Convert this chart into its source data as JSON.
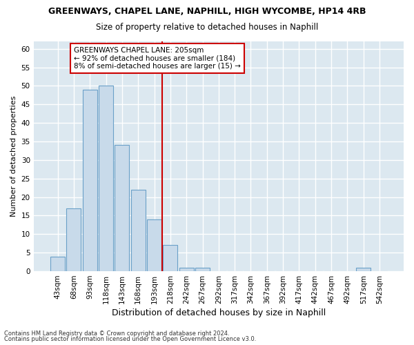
{
  "title": "GREENWAYS, CHAPEL LANE, NAPHILL, HIGH WYCOMBE, HP14 4RB",
  "subtitle": "Size of property relative to detached houses in Naphill",
  "xlabel": "Distribution of detached houses by size in Naphill",
  "ylabel": "Number of detached properties",
  "categories": [
    "43sqm",
    "68sqm",
    "93sqm",
    "118sqm",
    "143sqm",
    "168sqm",
    "193sqm",
    "218sqm",
    "242sqm",
    "267sqm",
    "292sqm",
    "317sqm",
    "342sqm",
    "367sqm",
    "392sqm",
    "417sqm",
    "442sqm",
    "467sqm",
    "492sqm",
    "517sqm",
    "542sqm"
  ],
  "values": [
    4,
    17,
    49,
    50,
    34,
    22,
    14,
    7,
    1,
    1,
    0,
    0,
    0,
    0,
    0,
    0,
    0,
    0,
    0,
    1,
    0
  ],
  "bar_color": "#c8daea",
  "bar_edgecolor": "#6aa0c8",
  "bar_linewidth": 0.8,
  "vline_position": 6.5,
  "vline_color": "#cc0000",
  "vline_linewidth": 1.5,
  "ylim": [
    0,
    62
  ],
  "yticks": [
    0,
    5,
    10,
    15,
    20,
    25,
    30,
    35,
    40,
    45,
    50,
    55,
    60
  ],
  "annotation_line1": "GREENWAYS CHAPEL LANE: 205sqm",
  "annotation_line2": "← 92% of detached houses are smaller (184)",
  "annotation_line3": "8% of semi-detached houses are larger (15) →",
  "annotation_box_facecolor": "#ffffff",
  "annotation_box_edgecolor": "#cc0000",
  "footnote1": "Contains HM Land Registry data © Crown copyright and database right 2024.",
  "footnote2": "Contains public sector information licensed under the Open Government Licence v3.0.",
  "fig_facecolor": "#ffffff",
  "plot_facecolor": "#dce8f0",
  "grid_color": "#ffffff",
  "title_fontsize": 9,
  "subtitle_fontsize": 8.5,
  "xlabel_fontsize": 9,
  "ylabel_fontsize": 8,
  "tick_fontsize": 7.5,
  "annotation_fontsize": 7.5,
  "footnote_fontsize": 6
}
